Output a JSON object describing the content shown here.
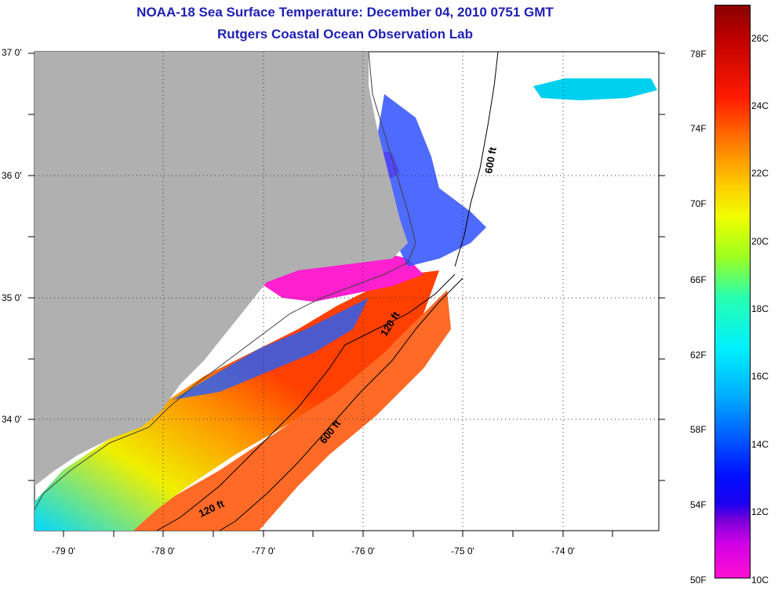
{
  "title": {
    "line1": "NOAA-18 Sea Surface Temperature:  December 04, 2010 0751 GMT",
    "line2": "Rutgers Coastal Ocean Observation Lab"
  },
  "axes": {
    "y_labels": [
      "37 0'",
      "36 0'",
      "35 0'",
      "34 0'"
    ],
    "x_labels": [
      "-79 0'",
      "-78 0'",
      "-77 0'",
      "-76 0'",
      "-75 0'",
      "-74 0'"
    ]
  },
  "isobaths": {
    "label_600_north": "600 ft",
    "label_120_mid": "120 ft",
    "label_600_south": "600 ft",
    "label_120_south": "120 ft"
  },
  "colorbar": {
    "fahrenheit": [
      "78F",
      "74F",
      "70F",
      "66F",
      "62F",
      "58F",
      "54F",
      "50F"
    ],
    "celsius": [
      "26C",
      "24C",
      "22C",
      "20C",
      "18C",
      "16C",
      "14C",
      "12C",
      "10C"
    ]
  },
  "colors": {
    "land": "#b0b0b0",
    "title": "#1f1fb4",
    "grid": "#333333"
  }
}
